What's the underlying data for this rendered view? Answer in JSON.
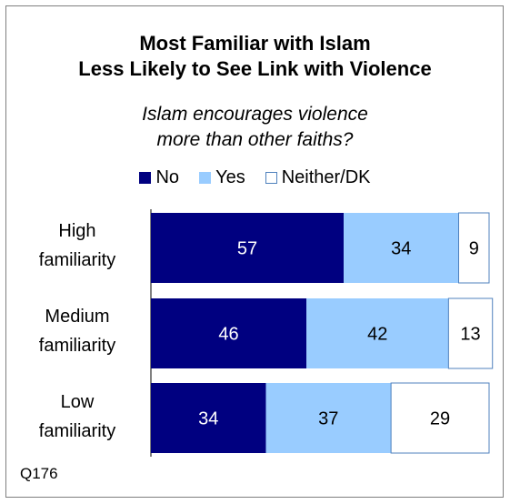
{
  "chart_data": {
    "type": "bar",
    "orientation": "horizontal",
    "stacked": true,
    "title_lines": [
      "Most Familiar with Islam",
      "Less Likely to See Link with Violence"
    ],
    "subtitle_lines": [
      "Islam encourages violence",
      "more than other faiths?"
    ],
    "categories": [
      [
        "High",
        "familiarity"
      ],
      [
        "Medium",
        "familiarity"
      ],
      [
        "Low",
        "familiarity"
      ]
    ],
    "series": [
      {
        "name": "No",
        "color": "#000080",
        "label_color": "#ffffff",
        "values": [
          57,
          46,
          34
        ]
      },
      {
        "name": "Yes",
        "color": "#99ccff",
        "label_color": "#000000",
        "values": [
          34,
          42,
          37
        ]
      },
      {
        "name": "Neither/DK",
        "color": "#ffffff",
        "label_color": "#000000",
        "values": [
          9,
          13,
          29
        ]
      }
    ],
    "xlim": [
      0,
      100
    ],
    "grid": false,
    "legend_position": "top"
  },
  "footnote": "Q176"
}
